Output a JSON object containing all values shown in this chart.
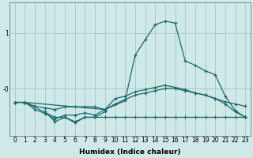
{
  "xlabel": "Humidex (Indice chaleur)",
  "ylabel": "",
  "bg_color": "#cfe8e8",
  "grid_color": "#aacccc",
  "line_color": "#1a6b6b",
  "x_values": [
    0,
    1,
    2,
    3,
    4,
    5,
    6,
    7,
    8,
    9,
    10,
    11,
    12,
    13,
    14,
    15,
    16,
    17,
    18,
    19,
    20,
    21,
    22,
    23
  ],
  "series_top": [
    -0.25,
    -0.25,
    -0.32,
    -0.35,
    -0.38,
    -0.33,
    -0.33,
    -0.33,
    -0.33,
    -0.38,
    -0.28,
    -0.2,
    -0.12,
    -0.08,
    -0.04,
    0.0,
    0.0,
    -0.04,
    -0.08,
    -0.12,
    -0.18,
    -0.24,
    -0.28,
    -0.32
  ],
  "series_mid": [
    -0.25,
    -0.25,
    -0.38,
    -0.45,
    -0.55,
    -0.48,
    -0.48,
    -0.44,
    -0.48,
    -0.38,
    -0.18,
    -0.14,
    -0.06,
    -0.02,
    0.02,
    0.06,
    0.02,
    -0.02,
    -0.08,
    -0.12,
    -0.18,
    -0.28,
    -0.42,
    -0.52
  ],
  "series_bot_x": [
    0,
    1,
    4,
    5,
    6,
    7,
    8,
    9,
    10,
    11,
    12,
    13,
    14,
    15,
    16,
    17,
    18,
    19,
    20,
    21,
    22,
    23
  ],
  "series_bot_y": [
    -0.25,
    -0.25,
    -0.52,
    -0.52,
    -0.6,
    -0.52,
    -0.52,
    -0.52,
    -0.52,
    -0.52,
    -0.52,
    -0.52,
    -0.52,
    -0.52,
    -0.52,
    -0.52,
    -0.52,
    -0.52,
    -0.52,
    -0.52,
    -0.52,
    -0.52
  ],
  "series_wavy_x": [
    3,
    4,
    5,
    6,
    7,
    8,
    9
  ],
  "series_wavy_y": [
    -0.42,
    -0.6,
    -0.52,
    -0.62,
    -0.52,
    -0.52,
    -0.42
  ],
  "series_main_x": [
    0,
    1,
    9,
    11,
    12,
    13,
    14,
    15,
    16,
    17,
    18,
    19,
    20,
    21,
    22,
    23
  ],
  "series_main_y": [
    -0.25,
    -0.25,
    -0.38,
    -0.22,
    0.6,
    0.88,
    1.15,
    1.22,
    1.18,
    0.5,
    0.42,
    0.32,
    0.25,
    -0.14,
    -0.4,
    -0.52
  ],
  "ylim": [
    -0.85,
    1.55
  ],
  "yticks": [
    0.0,
    1.0
  ],
  "ytick_labels": [
    "-0",
    "1"
  ],
  "xlim": [
    -0.5,
    23.5
  ],
  "xticks": [
    0,
    1,
    2,
    3,
    4,
    5,
    6,
    7,
    8,
    9,
    10,
    11,
    12,
    13,
    14,
    15,
    16,
    17,
    18,
    19,
    20,
    21,
    22,
    23
  ]
}
